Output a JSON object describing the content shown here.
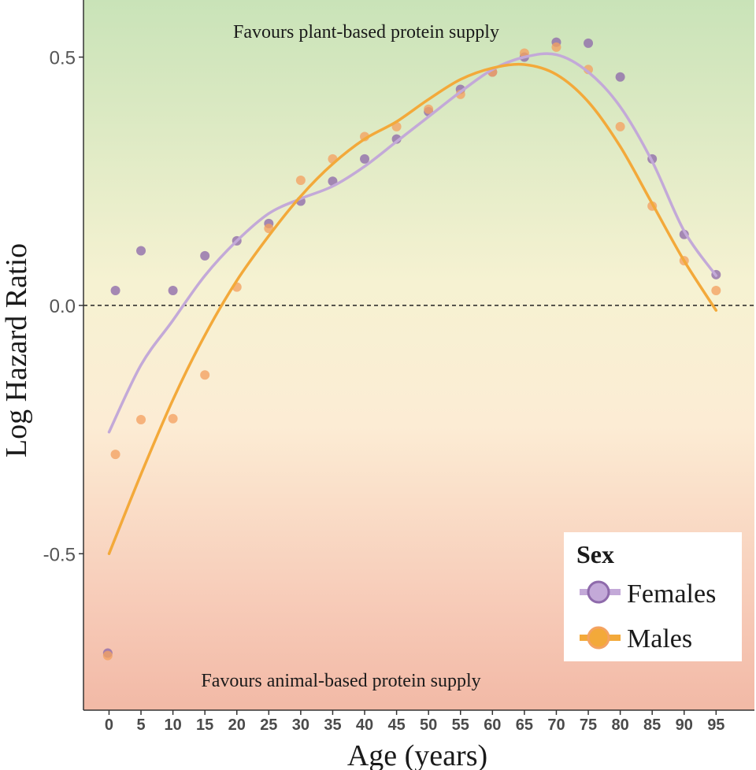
{
  "chart_data": {
    "type": "scatter",
    "xlabel": "Age (years)",
    "ylabel": "Log Hazard Ratio",
    "xlim": [
      -4,
      101
    ],
    "ylim": [
      -0.815,
      0.615
    ],
    "xticks": [
      "0",
      "5",
      "10",
      "15",
      "20",
      "25",
      "30",
      "35",
      "40",
      "45",
      "50",
      "55",
      "60",
      "65",
      "70",
      "75",
      "80",
      "85",
      "90",
      "95"
    ],
    "yticks": [
      "0.5",
      "0.0",
      "-0.5"
    ],
    "reference_line": 0.0,
    "annotations": {
      "top": "Favours plant-based protein supply",
      "bottom": "Favours animal-based protein supply"
    },
    "background_gradient": [
      "#c9e3b8",
      "#f6f2d2",
      "#fcecd4",
      "#f7cbb8",
      "#f2b9a6"
    ],
    "legend": {
      "title": "Sex",
      "position": "bottom-right",
      "entries": [
        "Females",
        "Males"
      ]
    },
    "series": [
      {
        "name": "Females",
        "color": "#8e6aab",
        "line_color": "#c3a9d8",
        "points": {
          "x": [
            -0.2,
            1,
            5,
            10,
            15,
            20,
            25,
            30,
            35,
            40,
            45,
            50,
            55,
            60,
            65,
            70,
            75,
            80,
            85,
            90,
            95
          ],
          "y": [
            -0.7,
            0.03,
            0.11,
            0.03,
            0.1,
            0.13,
            0.165,
            0.21,
            0.25,
            0.295,
            0.335,
            0.39,
            0.435,
            0.47,
            0.5,
            0.53,
            0.528,
            0.46,
            0.295,
            0.143,
            0.062
          ]
        },
        "smooth": {
          "x": [
            0,
            5,
            10,
            15,
            20,
            25,
            30,
            35,
            40,
            45,
            50,
            55,
            60,
            65,
            70,
            75,
            80,
            85,
            90,
            95
          ],
          "y": [
            -0.255,
            -0.12,
            -0.03,
            0.06,
            0.13,
            0.185,
            0.215,
            0.24,
            0.28,
            0.33,
            0.38,
            0.43,
            0.475,
            0.5,
            0.505,
            0.47,
            0.4,
            0.29,
            0.15,
            0.06
          ]
        }
      },
      {
        "name": "Males",
        "color": "#f4a261",
        "line_color": "#f3a93a",
        "points": {
          "x": [
            -0.2,
            1,
            5,
            10,
            15,
            20,
            25,
            30,
            35,
            40,
            45,
            50,
            55,
            60,
            65,
            70,
            75,
            80,
            85,
            90,
            95
          ],
          "y": [
            -0.705,
            -0.3,
            -0.23,
            -0.228,
            -0.14,
            0.037,
            0.155,
            0.252,
            0.295,
            0.34,
            0.36,
            0.395,
            0.425,
            0.47,
            0.508,
            0.52,
            0.475,
            0.36,
            0.2,
            0.09,
            0.03
          ]
        },
        "smooth": {
          "x": [
            0,
            5,
            10,
            15,
            20,
            25,
            30,
            35,
            40,
            45,
            50,
            55,
            60,
            65,
            70,
            75,
            80,
            85,
            90,
            95
          ],
          "y": [
            -0.5,
            -0.34,
            -0.19,
            -0.06,
            0.05,
            0.14,
            0.22,
            0.285,
            0.335,
            0.37,
            0.415,
            0.455,
            0.478,
            0.485,
            0.465,
            0.41,
            0.32,
            0.205,
            0.09,
            -0.01
          ]
        }
      }
    ]
  }
}
